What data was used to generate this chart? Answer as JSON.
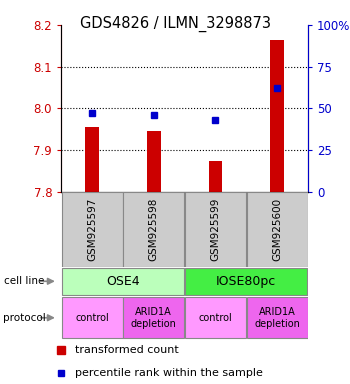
{
  "title": "GDS4826 / ILMN_3298873",
  "samples": [
    "GSM925597",
    "GSM925598",
    "GSM925599",
    "GSM925600"
  ],
  "red_values": [
    7.955,
    7.945,
    7.875,
    8.165
  ],
  "blue_values_pct": [
    47,
    46,
    43,
    62
  ],
  "ylim_left": [
    7.8,
    8.2
  ],
  "ylim_right": [
    0,
    100
  ],
  "yticks_left": [
    7.8,
    7.9,
    8.0,
    8.1,
    8.2
  ],
  "yticks_right": [
    0,
    25,
    50,
    75,
    100
  ],
  "ytick_labels_right": [
    "0",
    "25",
    "50",
    "75",
    "100%"
  ],
  "cell_line_labels": [
    "OSE4",
    "IOSE80pc"
  ],
  "cell_line_spans": [
    [
      0,
      2
    ],
    [
      2,
      4
    ]
  ],
  "cell_line_colors": [
    "#bbffbb",
    "#44ee44"
  ],
  "protocol_labels": [
    "control",
    "ARID1A\ndepletion",
    "control",
    "ARID1A\ndepletion"
  ],
  "protocol_colors": [
    "#ff99ff",
    "#ee66ee",
    "#ff99ff",
    "#ee66ee"
  ],
  "legend_red": "transformed count",
  "legend_blue": "percentile rank within the sample",
  "bar_color": "#cc0000",
  "dot_color": "#0000cc",
  "sample_box_color": "#cccccc",
  "left_color": "#cc0000",
  "right_color": "#0000cc",
  "grid_lines": [
    7.9,
    8.0,
    8.1
  ],
  "x_positions": [
    0.5,
    1.5,
    2.5,
    3.5
  ]
}
